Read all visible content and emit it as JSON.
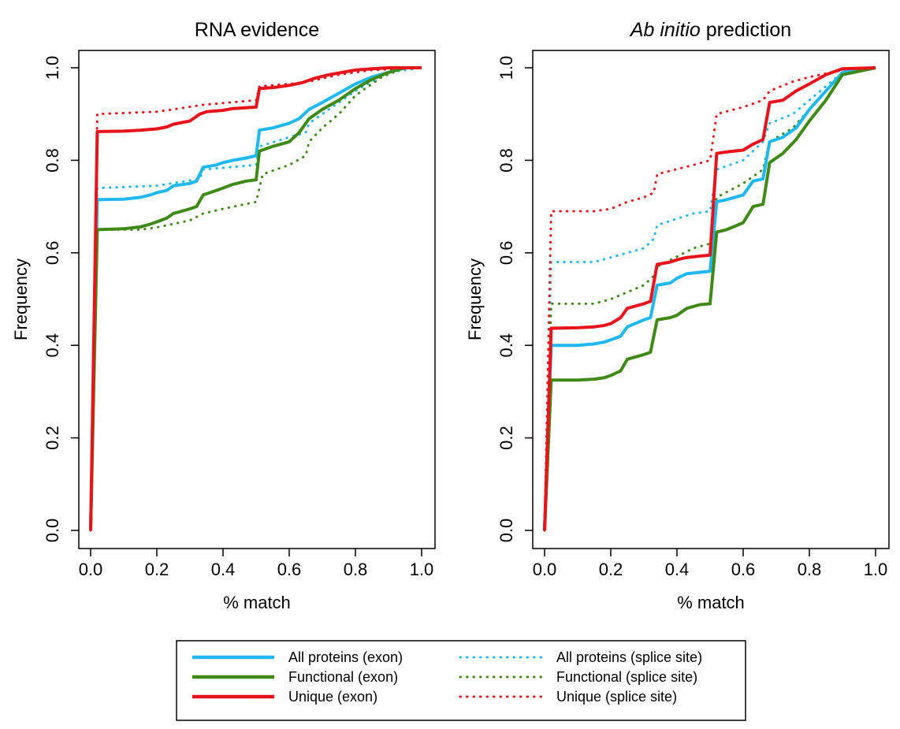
{
  "legend": {
    "items": [
      {
        "label": "All proteins (exon)",
        "color": "#20b8ee",
        "style": "solid"
      },
      {
        "label": "Functional (exon)",
        "color": "#3f8a17",
        "style": "solid"
      },
      {
        "label": "Unique (exon)",
        "color": "#e8141b",
        "style": "solid"
      },
      {
        "label": "All proteins (splice site)",
        "color": "#20b8ee",
        "style": "dotted"
      },
      {
        "label": "Functional (splice site)",
        "color": "#3f8a17",
        "style": "dotted"
      },
      {
        "label": "Unique (splice site)",
        "color": "#e8141b",
        "style": "dotted"
      }
    ]
  },
  "chart_data": [
    {
      "type": "line",
      "title": "RNA evidence",
      "title_italic": "",
      "xlabel": "% match",
      "ylabel": "Frequency",
      "xlim": [
        0,
        1
      ],
      "ylim": [
        0,
        1
      ],
      "xticks": [
        "0.0",
        "0.2",
        "0.4",
        "0.6",
        "0.8",
        "1.0"
      ],
      "yticks": [
        "0.0",
        "0.2",
        "0.4",
        "0.6",
        "0.8",
        "1.0"
      ],
      "grid": false,
      "series": [
        {
          "name": "All proteins (splice site)",
          "style": "dotted",
          "color": "#20b8ee",
          "x": [
            0,
            0.02,
            0.2,
            0.33,
            0.34,
            0.5,
            0.51,
            0.6,
            0.65,
            0.66,
            0.7,
            0.8,
            0.9,
            1.0
          ],
          "y": [
            0,
            0.74,
            0.745,
            0.76,
            0.78,
            0.79,
            0.83,
            0.85,
            0.86,
            0.88,
            0.9,
            0.95,
            0.99,
            1.0
          ]
        },
        {
          "name": "Functional (splice site)",
          "style": "dotted",
          "color": "#3f8a17",
          "x": [
            0,
            0.02,
            0.15,
            0.2,
            0.3,
            0.34,
            0.4,
            0.5,
            0.52,
            0.6,
            0.65,
            0.66,
            0.7,
            0.75,
            0.8,
            0.88,
            0.95,
            1.0
          ],
          "y": [
            0,
            0.65,
            0.65,
            0.655,
            0.67,
            0.685,
            0.695,
            0.71,
            0.77,
            0.79,
            0.81,
            0.84,
            0.87,
            0.9,
            0.94,
            0.98,
            1.0,
            1.0
          ]
        },
        {
          "name": "Unique (splice site)",
          "style": "dotted",
          "color": "#e8141b",
          "x": [
            0,
            0.02,
            0.2,
            0.25,
            0.34,
            0.5,
            0.51,
            0.6,
            0.66,
            0.75,
            0.85,
            1.0
          ],
          "y": [
            0,
            0.9,
            0.905,
            0.91,
            0.92,
            0.93,
            0.96,
            0.965,
            0.97,
            0.985,
            0.995,
            1.0
          ]
        },
        {
          "name": "All proteins (exon)",
          "style": "solid",
          "color": "#20b8ee",
          "x": [
            0,
            0.02,
            0.1,
            0.15,
            0.18,
            0.2,
            0.23,
            0.25,
            0.3,
            0.32,
            0.34,
            0.38,
            0.4,
            0.43,
            0.47,
            0.5,
            0.51,
            0.55,
            0.6,
            0.63,
            0.66,
            0.7,
            0.75,
            0.8,
            0.85,
            0.9,
            0.95,
            1.0
          ],
          "y": [
            0,
            0.715,
            0.716,
            0.72,
            0.725,
            0.73,
            0.735,
            0.745,
            0.75,
            0.755,
            0.785,
            0.79,
            0.795,
            0.8,
            0.805,
            0.81,
            0.865,
            0.87,
            0.88,
            0.89,
            0.91,
            0.925,
            0.945,
            0.965,
            0.98,
            0.99,
            1.0,
            1.0
          ]
        },
        {
          "name": "Functional (exon)",
          "style": "solid",
          "color": "#3f8a17",
          "x": [
            0,
            0.02,
            0.1,
            0.15,
            0.18,
            0.2,
            0.23,
            0.25,
            0.3,
            0.32,
            0.34,
            0.38,
            0.4,
            0.43,
            0.47,
            0.5,
            0.51,
            0.55,
            0.6,
            0.63,
            0.66,
            0.7,
            0.75,
            0.8,
            0.85,
            0.9,
            0.95,
            1.0
          ],
          "y": [
            0,
            0.65,
            0.652,
            0.656,
            0.662,
            0.667,
            0.675,
            0.685,
            0.695,
            0.7,
            0.725,
            0.735,
            0.74,
            0.748,
            0.755,
            0.758,
            0.82,
            0.83,
            0.84,
            0.86,
            0.89,
            0.91,
            0.93,
            0.955,
            0.975,
            0.99,
            1.0,
            1.0
          ]
        },
        {
          "name": "Unique (exon)",
          "style": "solid",
          "color": "#e8141b",
          "x": [
            0,
            0.02,
            0.1,
            0.15,
            0.2,
            0.23,
            0.25,
            0.3,
            0.33,
            0.35,
            0.4,
            0.43,
            0.5,
            0.51,
            0.56,
            0.6,
            0.64,
            0.68,
            0.72,
            0.76,
            0.8,
            0.85,
            0.9,
            1.0
          ],
          "y": [
            0,
            0.862,
            0.863,
            0.865,
            0.868,
            0.872,
            0.878,
            0.885,
            0.9,
            0.905,
            0.908,
            0.912,
            0.915,
            0.955,
            0.958,
            0.962,
            0.968,
            0.978,
            0.985,
            0.99,
            0.995,
            0.998,
            1.0,
            1.0
          ]
        }
      ]
    },
    {
      "type": "line",
      "title": "prediction",
      "title_italic": "Ab initio",
      "xlabel": "% match",
      "ylabel": "Frequency",
      "xlim": [
        0,
        1
      ],
      "ylim": [
        0,
        1
      ],
      "xticks": [
        "0.0",
        "0.2",
        "0.4",
        "0.6",
        "0.8",
        "1.0"
      ],
      "yticks": [
        "0.0",
        "0.2",
        "0.4",
        "0.6",
        "0.8",
        "1.0"
      ],
      "grid": false,
      "series": [
        {
          "name": "All proteins (splice site)",
          "style": "dotted",
          "color": "#20b8ee",
          "x": [
            0,
            0.02,
            0.15,
            0.2,
            0.3,
            0.33,
            0.34,
            0.45,
            0.5,
            0.52,
            0.6,
            0.66,
            0.68,
            0.75,
            0.8,
            0.85,
            0.9,
            1.0
          ],
          "y": [
            0,
            0.58,
            0.58,
            0.59,
            0.61,
            0.63,
            0.66,
            0.685,
            0.69,
            0.78,
            0.8,
            0.84,
            0.88,
            0.9,
            0.93,
            0.96,
            0.99,
            1.0
          ]
        },
        {
          "name": "Functional (splice site)",
          "style": "dotted",
          "color": "#3f8a17",
          "x": [
            0,
            0.02,
            0.15,
            0.2,
            0.3,
            0.33,
            0.34,
            0.45,
            0.5,
            0.52,
            0.6,
            0.66,
            0.68,
            0.75,
            0.8,
            0.85,
            0.9,
            1.0
          ],
          "y": [
            0,
            0.49,
            0.49,
            0.5,
            0.53,
            0.55,
            0.57,
            0.61,
            0.62,
            0.72,
            0.75,
            0.78,
            0.84,
            0.87,
            0.91,
            0.95,
            0.99,
            1.0
          ]
        },
        {
          "name": "Unique (splice site)",
          "style": "dotted",
          "color": "#e8141b",
          "x": [
            0,
            0.02,
            0.15,
            0.2,
            0.25,
            0.3,
            0.33,
            0.34,
            0.45,
            0.5,
            0.52,
            0.6,
            0.66,
            0.68,
            0.75,
            0.8,
            0.9,
            1.0
          ],
          "y": [
            0,
            0.69,
            0.69,
            0.695,
            0.71,
            0.72,
            0.73,
            0.77,
            0.79,
            0.8,
            0.9,
            0.915,
            0.93,
            0.95,
            0.97,
            0.98,
            0.995,
            1.0
          ]
        },
        {
          "name": "All proteins (exon)",
          "style": "solid",
          "color": "#20b8ee",
          "x": [
            0,
            0.02,
            0.1,
            0.15,
            0.18,
            0.2,
            0.23,
            0.25,
            0.3,
            0.32,
            0.34,
            0.38,
            0.4,
            0.43,
            0.47,
            0.5,
            0.52,
            0.55,
            0.6,
            0.63,
            0.66,
            0.68,
            0.72,
            0.76,
            0.8,
            0.85,
            0.9,
            1.0
          ],
          "y": [
            0,
            0.4,
            0.4,
            0.403,
            0.407,
            0.412,
            0.42,
            0.44,
            0.455,
            0.46,
            0.53,
            0.535,
            0.545,
            0.555,
            0.558,
            0.56,
            0.71,
            0.715,
            0.725,
            0.755,
            0.76,
            0.84,
            0.85,
            0.87,
            0.91,
            0.95,
            0.99,
            1.0
          ]
        },
        {
          "name": "Functional (exon)",
          "style": "solid",
          "color": "#3f8a17",
          "x": [
            0,
            0.02,
            0.1,
            0.15,
            0.18,
            0.2,
            0.23,
            0.25,
            0.3,
            0.32,
            0.34,
            0.38,
            0.4,
            0.43,
            0.47,
            0.5,
            0.52,
            0.55,
            0.6,
            0.63,
            0.66,
            0.68,
            0.72,
            0.76,
            0.8,
            0.85,
            0.9,
            1.0
          ],
          "y": [
            0,
            0.325,
            0.325,
            0.327,
            0.33,
            0.335,
            0.345,
            0.37,
            0.38,
            0.385,
            0.455,
            0.46,
            0.465,
            0.48,
            0.488,
            0.49,
            0.645,
            0.65,
            0.665,
            0.7,
            0.705,
            0.795,
            0.815,
            0.845,
            0.885,
            0.93,
            0.985,
            1.0
          ]
        },
        {
          "name": "Unique (exon)",
          "style": "solid",
          "color": "#e8141b",
          "x": [
            0,
            0.02,
            0.1,
            0.15,
            0.18,
            0.2,
            0.23,
            0.25,
            0.3,
            0.32,
            0.34,
            0.38,
            0.4,
            0.43,
            0.47,
            0.5,
            0.52,
            0.55,
            0.6,
            0.63,
            0.66,
            0.68,
            0.72,
            0.76,
            0.8,
            0.85,
            0.9,
            1.0
          ],
          "y": [
            0,
            0.437,
            0.438,
            0.44,
            0.443,
            0.447,
            0.46,
            0.48,
            0.49,
            0.495,
            0.575,
            0.58,
            0.585,
            0.59,
            0.593,
            0.595,
            0.815,
            0.818,
            0.822,
            0.835,
            0.845,
            0.925,
            0.93,
            0.95,
            0.965,
            0.985,
            0.998,
            1.0
          ]
        }
      ]
    }
  ]
}
